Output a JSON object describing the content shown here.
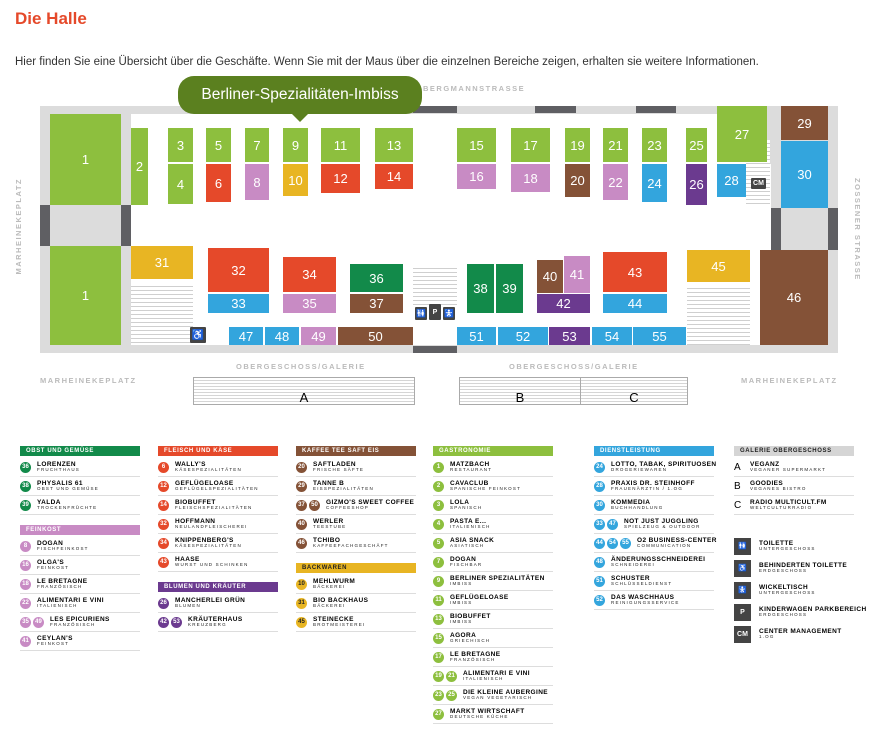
{
  "page": {
    "title": "Die Halle",
    "intro": "Hier finden Sie eine Übersicht über die Geschäfte. Wenn Sie mit der Maus über die einzelnen Bereiche zeigen, erhalten sie weitere Informationen."
  },
  "colors": {
    "gastro": "#8dbf3e",
    "fleisch": "#e5492a",
    "feinkost": "#c88bc4",
    "back": "#e8b523",
    "obst": "#128a4a",
    "kaffee": "#845237",
    "dienst": "#33a5dd",
    "blumen": "#6b3a8f",
    "galerie": "#d5d5d5",
    "tooltip": "#5b801f",
    "title": "#e5492a"
  },
  "map": {
    "tooltip": "Berliner-Spezialitäten-Imbiss",
    "streets": {
      "top": "BERGMANNSTRASSE",
      "left": "MARHEINEKEPLATZ",
      "right": "ZOSSENER STRASSE",
      "bottom_left": "MARHEINEKEPLATZ",
      "bottom_right": "MARHEINEKEPLATZ",
      "galerie_1": "OBERGESCHOSS/GALERIE",
      "galerie_2": "OBERGESCHOSS/GALERIE"
    },
    "galerie": [
      "A",
      "B",
      "C"
    ],
    "stalls": [
      {
        "n": "1",
        "c": "gastro"
      },
      {
        "n": "1",
        "c": "gastro"
      },
      {
        "n": "2",
        "c": "gastro"
      },
      {
        "n": "3",
        "c": "gastro"
      },
      {
        "n": "4",
        "c": "gastro"
      },
      {
        "n": "5",
        "c": "gastro"
      },
      {
        "n": "6",
        "c": "fleisch"
      },
      {
        "n": "7",
        "c": "gastro"
      },
      {
        "n": "8",
        "c": "feinkost"
      },
      {
        "n": "9",
        "c": "gastro"
      },
      {
        "n": "10",
        "c": "back"
      },
      {
        "n": "11",
        "c": "gastro"
      },
      {
        "n": "12",
        "c": "fleisch"
      },
      {
        "n": "13",
        "c": "gastro"
      },
      {
        "n": "14",
        "c": "fleisch"
      },
      {
        "n": "15",
        "c": "gastro"
      },
      {
        "n": "16",
        "c": "feinkost"
      },
      {
        "n": "17",
        "c": "gastro"
      },
      {
        "n": "18",
        "c": "feinkost"
      },
      {
        "n": "19",
        "c": "gastro"
      },
      {
        "n": "20",
        "c": "kaffee"
      },
      {
        "n": "21",
        "c": "gastro"
      },
      {
        "n": "22",
        "c": "feinkost"
      },
      {
        "n": "23",
        "c": "gastro"
      },
      {
        "n": "24",
        "c": "dienst"
      },
      {
        "n": "25",
        "c": "gastro"
      },
      {
        "n": "26",
        "c": "blumen"
      },
      {
        "n": "27",
        "c": "gastro"
      },
      {
        "n": "28",
        "c": "dienst"
      },
      {
        "n": "29",
        "c": "kaffee"
      },
      {
        "n": "30",
        "c": "dienst"
      },
      {
        "n": "31",
        "c": "back"
      },
      {
        "n": "32",
        "c": "fleisch"
      },
      {
        "n": "33",
        "c": "dienst"
      },
      {
        "n": "34",
        "c": "fleisch"
      },
      {
        "n": "35",
        "c": "feinkost"
      },
      {
        "n": "36",
        "c": "obst"
      },
      {
        "n": "37",
        "c": "kaffee"
      },
      {
        "n": "38",
        "c": "obst"
      },
      {
        "n": "39",
        "c": "obst"
      },
      {
        "n": "40",
        "c": "kaffee"
      },
      {
        "n": "41",
        "c": "feinkost"
      },
      {
        "n": "42",
        "c": "blumen"
      },
      {
        "n": "43",
        "c": "fleisch"
      },
      {
        "n": "44",
        "c": "dienst"
      },
      {
        "n": "45",
        "c": "back"
      },
      {
        "n": "46",
        "c": "kaffee"
      },
      {
        "n": "47",
        "c": "dienst"
      },
      {
        "n": "48",
        "c": "dienst"
      },
      {
        "n": "49",
        "c": "feinkost"
      },
      {
        "n": "50",
        "c": "kaffee"
      },
      {
        "n": "51",
        "c": "dienst"
      },
      {
        "n": "52",
        "c": "dienst"
      },
      {
        "n": "53",
        "c": "blumen"
      },
      {
        "n": "54",
        "c": "dienst"
      },
      {
        "n": "55",
        "c": "dienst"
      }
    ],
    "icons": {
      "cm": "CM",
      "wc": "WC",
      "parking": "P"
    }
  },
  "legend": [
    [
      {
        "title": "OBST UND GEMÜSE",
        "c": "obst",
        "items": [
          {
            "b": [
              "36"
            ],
            "n": "LORENZEN",
            "s": "FRUCHTHAUS"
          },
          {
            "b": [
              "38"
            ],
            "n": "PHYSALIS 61",
            "s": "OBST UND GEMÜSE"
          },
          {
            "b": [
              "39"
            ],
            "n": "YALDA",
            "s": "TROCKENFRÜCHTE"
          }
        ]
      },
      {
        "title": "FEINKOST",
        "c": "feinkost",
        "items": [
          {
            "b": [
              "8"
            ],
            "n": "DOGAN",
            "s": "FISCHFEINKOST"
          },
          {
            "b": [
              "16"
            ],
            "n": "OLGA'S",
            "s": "FEINKOST"
          },
          {
            "b": [
              "18"
            ],
            "n": "LE BRETAGNE",
            "s": "FRANZÖSISCH"
          },
          {
            "b": [
              "22"
            ],
            "n": "ALIMENTARI E VINI",
            "s": "ITALIENISCH"
          },
          {
            "b": [
              "35",
              "49"
            ],
            "n": "LES EPICURIENS",
            "s": "FRANZÖSISCH"
          },
          {
            "b": [
              "41"
            ],
            "n": "CEYLAN'S",
            "s": "FEINKOST"
          }
        ]
      }
    ],
    [
      {
        "title": "FLEISCH UND KÄSE",
        "c": "fleisch",
        "items": [
          {
            "b": [
              "6"
            ],
            "n": "WALLY'S",
            "s": "KÄSESPEZIALITÄTEN"
          },
          {
            "b": [
              "12"
            ],
            "n": "GEFLÜGELOASE",
            "s": "GEFLÜGELSPEZIALITÄTEN"
          },
          {
            "b": [
              "14"
            ],
            "n": "BIOBUFFET",
            "s": "FLEISCHSPEZIALITÄTEN"
          },
          {
            "b": [
              "32"
            ],
            "n": "HOFFMANN",
            "s": "NEULANDFLEISCHEREI"
          },
          {
            "b": [
              "34"
            ],
            "n": "KNIPPENBERG'S",
            "s": "KÄSESPEZIALITÄTEN"
          },
          {
            "b": [
              "43"
            ],
            "n": "HAASE",
            "s": "WURST UND SCHINKEN"
          }
        ]
      },
      {
        "title": "BLUMEN UND KRÄUTER",
        "c": "blumen",
        "items": [
          {
            "b": [
              "26"
            ],
            "n": "MANCHERLEI GRÜN",
            "s": "BLUMEN"
          },
          {
            "b": [
              "42",
              "53"
            ],
            "n": "KRÄUTERHAUS",
            "s": "KREUZBERG"
          }
        ]
      }
    ],
    [
      {
        "title": "KAFFEE  TEE  SAFT  EIS",
        "c": "kaffee",
        "items": [
          {
            "b": [
              "20"
            ],
            "n": "SAFTLADEN",
            "s": "FRISCHE SÄFTE"
          },
          {
            "b": [
              "29"
            ],
            "n": "TANNE B",
            "s": "EISSPEZIALITÄTEN"
          },
          {
            "b": [
              "37",
              "50"
            ],
            "n": "GIZMO'S SWEET COFFEE",
            "s": "COFFEESHOP"
          },
          {
            "b": [
              "40"
            ],
            "n": "WERLER",
            "s": "TEESTUBE"
          },
          {
            "b": [
              "46"
            ],
            "n": "TCHIBO",
            "s": "KAFFEEFACHGESCHÄFT"
          }
        ]
      },
      {
        "title": "BACKWAREN",
        "c": "back",
        "dark": true,
        "items": [
          {
            "b": [
              "10"
            ],
            "n": "MEHLWURM",
            "s": "BÄCKEREI"
          },
          {
            "b": [
              "31"
            ],
            "n": "BIO BACKHAUS",
            "s": "BÄCKEREI"
          },
          {
            "b": [
              "45"
            ],
            "n": "STEINECKE",
            "s": "BROTMEISTEREI"
          }
        ]
      }
    ],
    [
      {
        "title": "GASTRONOMIE",
        "c": "gastro",
        "items": [
          {
            "b": [
              "1"
            ],
            "n": "MATZBACH",
            "s": "RESTAURANT"
          },
          {
            "b": [
              "2"
            ],
            "n": "CAVACLUB",
            "s": "SPANISCHE FEINKOST"
          },
          {
            "b": [
              "3"
            ],
            "n": "LOLA",
            "s": "SPANISCH"
          },
          {
            "b": [
              "4"
            ],
            "n": "PASTA E...",
            "s": "ITALIENISCH"
          },
          {
            "b": [
              "5"
            ],
            "n": "ASIA SNACK",
            "s": "ASIATISCH"
          },
          {
            "b": [
              "7"
            ],
            "n": "DOGAN",
            "s": "FISCHBAR"
          },
          {
            "b": [
              "9"
            ],
            "n": "BERLINER SPEZIALITÄTEN",
            "s": "IMBISS"
          },
          {
            "b": [
              "11"
            ],
            "n": "GEFLÜGELOASE",
            "s": "IMBISS"
          },
          {
            "b": [
              "13"
            ],
            "n": "BIOBUFFET",
            "s": "IMBISS"
          },
          {
            "b": [
              "15"
            ],
            "n": "AGORA",
            "s": "GRIECHISCH"
          },
          {
            "b": [
              "17"
            ],
            "n": "LE BRETAGNE",
            "s": "FRANZÖSISCH"
          },
          {
            "b": [
              "19",
              "21"
            ],
            "n": "ALIMENTARI E VINI",
            "s": "ITALIENISCH"
          },
          {
            "b": [
              "23",
              "25"
            ],
            "n": "DIE KLEINE AUBERGINE",
            "s": "VEGAN VEGETARISCH"
          },
          {
            "b": [
              "27"
            ],
            "n": "MARKT WIRTSCHAFT",
            "s": "DEUTSCHE KÜCHE"
          }
        ]
      }
    ],
    [
      {
        "title": "DIENSTLEISTUNG",
        "c": "dienst",
        "items": [
          {
            "b": [
              "24"
            ],
            "n": "LOTTO, TABAK, SPIRITUOSEN",
            "s": "DROGERIEWAREN"
          },
          {
            "b": [
              "28"
            ],
            "n": "PRAXIS DR. STEINHOFF",
            "s": "FRAUENÄRZTIN / 1.OG"
          },
          {
            "b": [
              "30"
            ],
            "n": "KOMMEDIA",
            "s": "BUCHHANDLUNG"
          },
          {
            "b": [
              "33",
              "47"
            ],
            "n": "NOT JUST JUGGLING",
            "s": "SPIELZEUG & OUTDOOR"
          },
          {
            "b": [
              "44",
              "54",
              "55"
            ],
            "n": "O2 BUSINESS-CENTER",
            "s": "COMMUNICATION"
          },
          {
            "b": [
              "48"
            ],
            "n": "ÄNDERUNGSSCHNEIDEREI",
            "s": "SCHNEIDEREI"
          },
          {
            "b": [
              "51"
            ],
            "n": "SCHUSTER",
            "s": "SCHLÜSSELDIENST"
          },
          {
            "b": [
              "52"
            ],
            "n": "DAS WASCHHAUS",
            "s": "REINIGUNGSSERVICE"
          }
        ]
      }
    ],
    [
      {
        "title": "GALERIE OBERGESCHOSS",
        "c": "galerie",
        "dark": true,
        "items": [
          {
            "l": "A",
            "n": "VEGANZ",
            "s": "VEGANER SUPERMARKT"
          },
          {
            "l": "B",
            "n": "GOODIES",
            "s": "VEGANES BISTRO"
          },
          {
            "l": "C",
            "n": "RADIO MULTICULT.FM",
            "s": "WELTCULTURRADIO"
          }
        ]
      }
    ]
  ],
  "facilities": [
    {
      "icon": "toilet",
      "g": "🚻",
      "n": "TOILETTE",
      "s": "UNTERGESCHOSS"
    },
    {
      "icon": "wheelchair-wc",
      "g": "♿",
      "n": "BEHINDERTEN TOILETTE",
      "s": "ERDGESCHOSS"
    },
    {
      "icon": "baby-changing",
      "g": "🚼",
      "n": "WICKELTISCH",
      "s": "UNTERGESCHOSS"
    },
    {
      "icon": "stroller-parking",
      "g": "P",
      "n": "KINDERWAGEN PARKBEREICH",
      "s": "ERDGESCHOSS"
    },
    {
      "icon": "center-management",
      "g": "CM",
      "n": "CENTER MANAGEMENT",
      "s": "1.OG"
    }
  ]
}
